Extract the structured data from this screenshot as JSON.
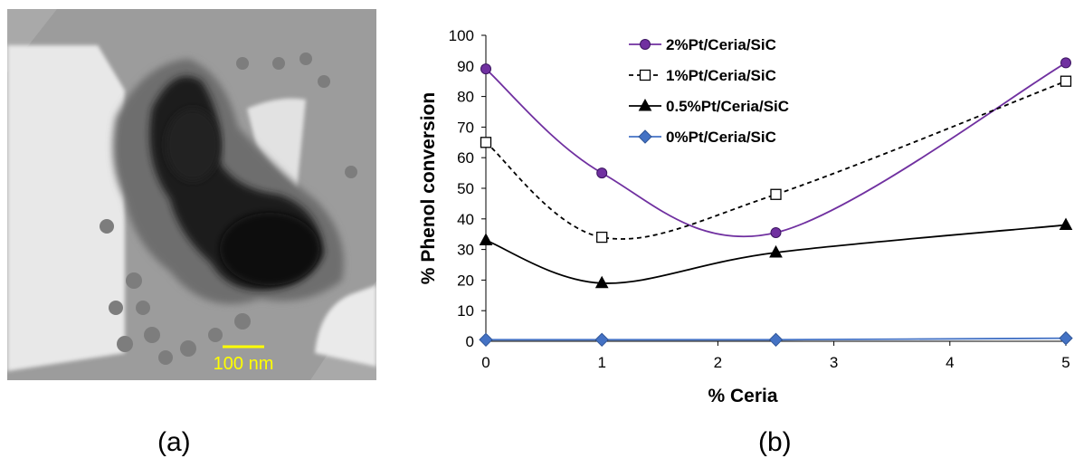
{
  "panel_a": {
    "scale_bar_label": "100 nm",
    "scale_bar_color": "#ffff00"
  },
  "captions": {
    "a": "(a)",
    "b": "(b)"
  },
  "chart_data": {
    "type": "line",
    "title": "",
    "xlabel": "% Ceria",
    "ylabel": "% Phenol conversion",
    "xlim": [
      0,
      5
    ],
    "ylim": [
      0,
      100
    ],
    "x_ticks": [
      0,
      1,
      2,
      3,
      4,
      5
    ],
    "y_ticks": [
      0,
      10,
      20,
      30,
      40,
      50,
      60,
      70,
      80,
      90,
      100
    ],
    "grid": false,
    "legend_position": "top-center",
    "series": [
      {
        "name": "2%Pt/Ceria/SiC",
        "x": [
          0,
          1,
          2.5,
          5
        ],
        "y": [
          89,
          55,
          35.5,
          91
        ],
        "color": "#7030a0",
        "marker": "circle",
        "dash": "solid",
        "marker_fill": "#7030a0"
      },
      {
        "name": "1%Pt/Ceria/SiC",
        "x": [
          0,
          1,
          2.5,
          5
        ],
        "y": [
          65,
          34,
          48,
          85
        ],
        "color": "#000000",
        "marker": "square",
        "dash": "dashed",
        "marker_fill": "#ffffff"
      },
      {
        "name": "0.5%Pt/Ceria/SiC",
        "x": [
          0,
          1,
          2.5,
          5
        ],
        "y": [
          33,
          19,
          29,
          38
        ],
        "color": "#000000",
        "marker": "triangle",
        "dash": "solid",
        "marker_fill": "#000000"
      },
      {
        "name": "0%Pt/Ceria/SiC",
        "x": [
          0,
          1,
          2.5,
          5
        ],
        "y": [
          0.5,
          0.5,
          0.5,
          1
        ],
        "color": "#4472c4",
        "marker": "diamond",
        "dash": "solid",
        "marker_fill": "#4472c4"
      }
    ]
  }
}
